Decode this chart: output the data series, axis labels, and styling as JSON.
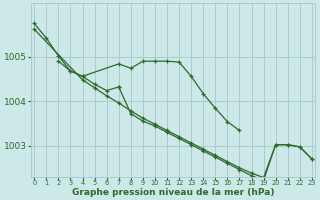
{
  "bg_color": "#cce8e8",
  "grid_color": "#aacccc",
  "line_color": "#2d6a2d",
  "xlabel": "Graphe pression niveau de la mer (hPa)",
  "ylim": [
    1002.3,
    1006.2
  ],
  "yticks": [
    1003,
    1004,
    1005
  ],
  "xticks": [
    0,
    1,
    2,
    3,
    4,
    5,
    6,
    7,
    8,
    9,
    10,
    11,
    12,
    13,
    14,
    15,
    16,
    17,
    18,
    19,
    20,
    21,
    22,
    23
  ],
  "line1_x": [
    0,
    1,
    2,
    3,
    4,
    7,
    8,
    9,
    10,
    11,
    12,
    13,
    14,
    15,
    16,
    17
  ],
  "line1_y": [
    1005.75,
    1005.42,
    1005.02,
    1004.68,
    1004.56,
    1004.84,
    1004.74,
    1004.9,
    1004.9,
    1004.9,
    1004.88,
    1004.56,
    1004.17,
    1003.84,
    1003.54,
    1003.34
  ],
  "line2_x": [
    2,
    3,
    4,
    5,
    6,
    7
  ],
  "line2_y": [
    1004.9,
    1004.68,
    1004.56,
    1004.38,
    1004.24,
    1004.32
  ],
  "line3_x": [
    0,
    4,
    5,
    6,
    7,
    8,
    9,
    10,
    11,
    12,
    13,
    14,
    15,
    16,
    17,
    18,
    19,
    20,
    21,
    22,
    23
  ],
  "line3_y": [
    1005.62,
    1004.48,
    1004.3,
    1004.12,
    1003.96,
    1003.78,
    1003.62,
    1003.48,
    1003.34,
    1003.2,
    1003.06,
    1002.92,
    1002.78,
    1002.64,
    1002.5,
    1002.38,
    1002.28,
    1003.02,
    1003.02,
    1002.97,
    1002.7
  ],
  "line4_x": [
    7,
    8,
    9,
    10,
    11,
    12,
    13,
    14,
    15,
    16,
    17,
    18,
    19,
    20,
    21,
    22,
    23
  ],
  "line4_y": [
    1004.32,
    1003.72,
    1003.55,
    1003.44,
    1003.3,
    1003.16,
    1003.02,
    1002.88,
    1002.74,
    1002.6,
    1002.46,
    1002.32,
    1002.22,
    1003.02,
    1003.02,
    1002.97,
    1002.7
  ]
}
